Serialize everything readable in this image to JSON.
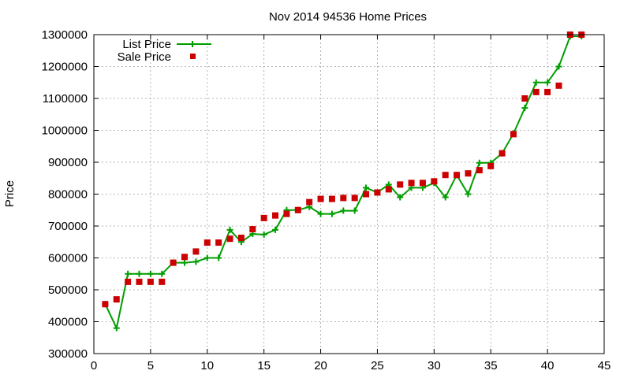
{
  "chart_data": {
    "type": "line",
    "title": "Nov 2014 94536 Home Prices",
    "xlabel": "",
    "ylabel": "Price",
    "xlim": [
      0,
      45
    ],
    "ylim": [
      300000,
      1300000
    ],
    "x_ticks": [
      0,
      5,
      10,
      15,
      20,
      25,
      30,
      35,
      40,
      45
    ],
    "y_ticks": [
      300000,
      400000,
      500000,
      600000,
      700000,
      800000,
      900000,
      1000000,
      1100000,
      1200000,
      1300000
    ],
    "grid": true,
    "legend_position": "top-left",
    "series": [
      {
        "name": "List Price",
        "style": "line-with-plus-markers",
        "color": "#009e00",
        "x": [
          1,
          2,
          3,
          4,
          5,
          6,
          7,
          8,
          9,
          10,
          11,
          12,
          13,
          14,
          15,
          16,
          17,
          18,
          19,
          20,
          21,
          22,
          23,
          24,
          25,
          26,
          27,
          28,
          29,
          30,
          31,
          32,
          33,
          34,
          35,
          36,
          37,
          38,
          39,
          40,
          41,
          42,
          43
        ],
        "y": [
          455000,
          380000,
          550000,
          550000,
          550000,
          550000,
          585000,
          585000,
          588000,
          600000,
          600000,
          688000,
          650000,
          675000,
          673000,
          688000,
          750000,
          750000,
          760000,
          738000,
          738000,
          748000,
          748000,
          820000,
          805000,
          830000,
          790000,
          820000,
          820000,
          835000,
          790000,
          860000,
          800000,
          898000,
          898000,
          928000,
          990000,
          1070000,
          1150000,
          1150000,
          1200000,
          1295000,
          1295000
        ]
      },
      {
        "name": "Sale Price",
        "style": "square-markers",
        "color": "#cc0000",
        "x": [
          1,
          2,
          3,
          4,
          5,
          6,
          7,
          8,
          9,
          10,
          11,
          12,
          13,
          14,
          15,
          16,
          17,
          18,
          19,
          20,
          21,
          22,
          23,
          24,
          25,
          26,
          27,
          28,
          29,
          30,
          31,
          32,
          33,
          34,
          35,
          36,
          37,
          38,
          39,
          40,
          41,
          42,
          43
        ],
        "y": [
          455000,
          470000,
          525000,
          525000,
          525000,
          525000,
          585000,
          603000,
          620000,
          648000,
          648000,
          660000,
          663000,
          690000,
          725000,
          733000,
          738000,
          750000,
          775000,
          785000,
          785000,
          788000,
          788000,
          800000,
          805000,
          815000,
          830000,
          835000,
          835000,
          840000,
          860000,
          860000,
          865000,
          875000,
          888000,
          928000,
          988000,
          1100000,
          1120000,
          1120000,
          1140000,
          1300000,
          1300000
        ]
      }
    ]
  }
}
